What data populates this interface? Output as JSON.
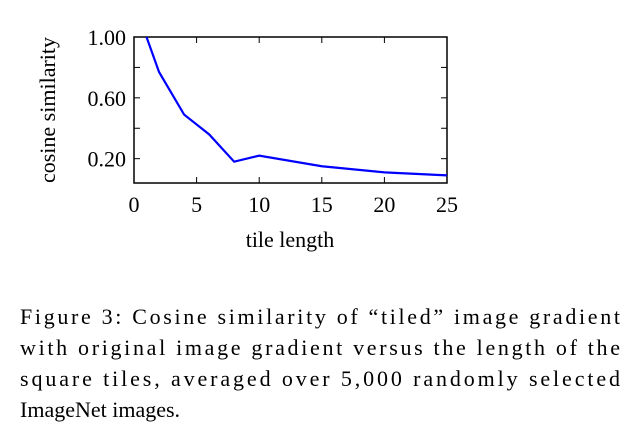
{
  "chart_data": {
    "type": "line",
    "x": [
      1,
      2,
      4,
      6,
      8,
      10,
      15,
      20,
      25
    ],
    "series": [
      {
        "color": "#0000ff",
        "values": [
          1.0,
          0.77,
          0.49,
          0.36,
          0.18,
          0.22,
          0.15,
          0.11,
          0.09
        ]
      }
    ],
    "xlim": [
      0,
      25
    ],
    "xticks": [
      0,
      5,
      10,
      15,
      20,
      25
    ],
    "ylim": [
      0.04,
      1.0
    ],
    "yticks": [
      {
        "value": 0.2,
        "label": "0.20"
      },
      {
        "value": 0.6,
        "label": "0.60"
      },
      {
        "value": 1.0,
        "label": "1.00"
      }
    ],
    "yminor": [
      0.4,
      0.8
    ],
    "xlabel": "tile length",
    "ylabel": "cosine similarity",
    "caption": [
      "Figure 3: Cosine similarity of “tiled” image gradient",
      "with original image gradient versus the length of the",
      "square tiles, averaged over 5,000 randomly selected",
      "ImageNet images."
    ]
  }
}
